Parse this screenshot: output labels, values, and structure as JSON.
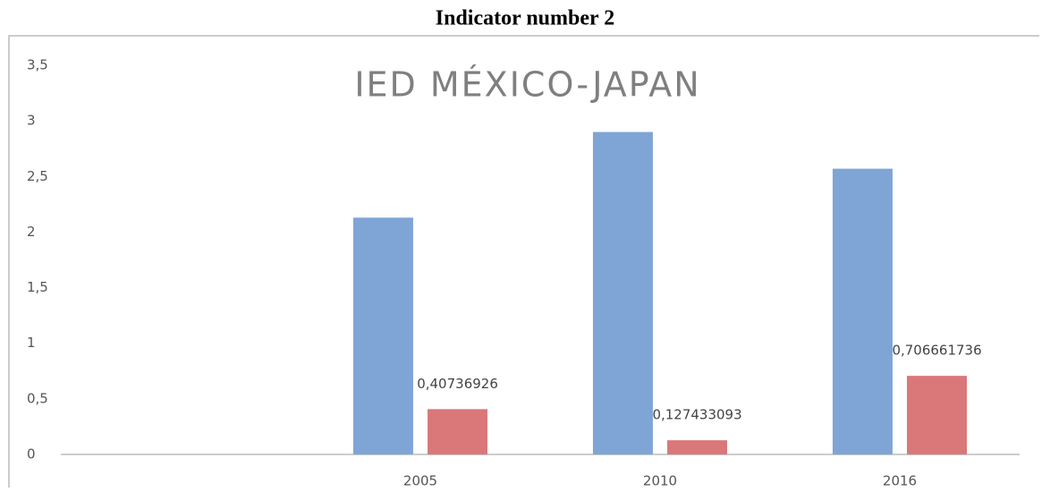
{
  "heading": "Indicator number 2",
  "chart_data": {
    "type": "bar",
    "title": "IED MÉXICO-JAPAN",
    "categories": [
      null,
      "2005",
      "2010",
      "2016"
    ],
    "series": [
      {
        "color": "#7fa5d6",
        "values": [
          null,
          2.13,
          2.9,
          2.57
        ]
      },
      {
        "color": "#d97779",
        "values": [
          null,
          0.40736926,
          0.127433093,
          0.706661736
        ],
        "value_labels": [
          null,
          "0,40736926",
          "0,127433093",
          "0,706661736"
        ]
      }
    ],
    "ylim": [
      0,
      3.5
    ],
    "yticks": [
      0,
      {
        "value": 0.5,
        "label": "0,5"
      },
      1,
      {
        "value": 1.5,
        "label": "1,5"
      },
      2,
      {
        "value": 2.5,
        "label": "2,5"
      },
      3,
      {
        "value": 3.5,
        "label": "3,5"
      }
    ],
    "grid": false
  }
}
